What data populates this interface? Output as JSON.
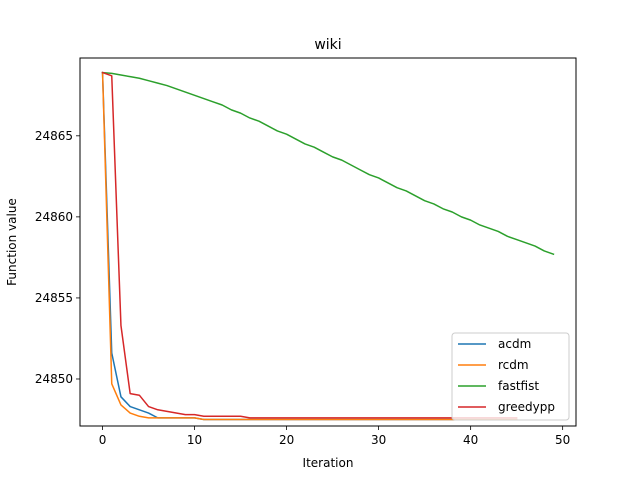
{
  "chart_data": {
    "type": "line",
    "title": "wiki",
    "xlabel": "Iteration",
    "ylabel": "Function value",
    "xlim": [
      -2.45,
      51.45
    ],
    "ylim": [
      24847.1,
      24869.8
    ],
    "xticks": [
      0,
      10,
      20,
      30,
      40,
      50
    ],
    "yticks": [
      24850,
      24855,
      24860,
      24865
    ],
    "legend_position": "lower-right",
    "grid": false,
    "series": [
      {
        "name": "acdm",
        "color": "#1f77b4",
        "x": [
          0,
          1,
          2,
          3,
          4,
          5,
          6,
          7,
          8,
          9,
          10,
          11,
          12,
          13,
          14,
          15,
          16,
          17,
          18,
          19,
          20,
          21,
          22,
          23,
          24,
          25,
          26,
          27,
          28,
          29,
          30,
          31,
          32,
          33,
          34,
          35,
          36,
          37,
          38,
          39,
          40,
          41,
          42,
          43,
          44,
          45
        ],
        "y": [
          24868.9,
          24851.6,
          24848.9,
          24848.3,
          24848.1,
          24847.9,
          24847.6,
          24847.6,
          24847.6,
          24847.6,
          24847.6,
          24847.5,
          24847.5,
          24847.5,
          24847.5,
          24847.5,
          24847.5,
          24847.5,
          24847.5,
          24847.5,
          24847.5,
          24847.5,
          24847.5,
          24847.5,
          24847.5,
          24847.5,
          24847.5,
          24847.5,
          24847.5,
          24847.5,
          24847.5,
          24847.5,
          24847.5,
          24847.5,
          24847.5,
          24847.5,
          24847.5,
          24847.5,
          24847.5,
          24847.5,
          24847.5,
          24847.5,
          24847.5,
          24847.5,
          24847.5,
          24847.5
        ]
      },
      {
        "name": "rcdm",
        "color": "#ff7f0e",
        "x": [
          0,
          1,
          2,
          3,
          4,
          5,
          6,
          7,
          8,
          9,
          10,
          11,
          12,
          13,
          14,
          15,
          16,
          17,
          18,
          19,
          20,
          21,
          22,
          23,
          24,
          25,
          26,
          27,
          28,
          29,
          30,
          31,
          32,
          33,
          34,
          35,
          36,
          37,
          38,
          39,
          40,
          41,
          42,
          43,
          44,
          45
        ],
        "y": [
          24868.9,
          24849.7,
          24848.4,
          24847.9,
          24847.7,
          24847.6,
          24847.6,
          24847.6,
          24847.6,
          24847.6,
          24847.6,
          24847.5,
          24847.5,
          24847.5,
          24847.5,
          24847.5,
          24847.5,
          24847.5,
          24847.5,
          24847.5,
          24847.5,
          24847.5,
          24847.5,
          24847.5,
          24847.5,
          24847.5,
          24847.5,
          24847.5,
          24847.5,
          24847.5,
          24847.5,
          24847.5,
          24847.5,
          24847.5,
          24847.5,
          24847.5,
          24847.5,
          24847.5,
          24847.5,
          24847.5,
          24847.5,
          24847.5,
          24847.5,
          24847.5,
          24847.5,
          24847.5
        ]
      },
      {
        "name": "fastfist",
        "color": "#2ca02c",
        "x": [
          0,
          1,
          2,
          3,
          4,
          5,
          6,
          7,
          8,
          9,
          10,
          11,
          12,
          13,
          14,
          15,
          16,
          17,
          18,
          19,
          20,
          21,
          22,
          23,
          24,
          25,
          26,
          27,
          28,
          29,
          30,
          31,
          32,
          33,
          34,
          35,
          36,
          37,
          38,
          39,
          40,
          41,
          42,
          43,
          44,
          45,
          46,
          47,
          48,
          49
        ],
        "y": [
          24868.9,
          24868.85,
          24868.75,
          24868.65,
          24868.55,
          24868.4,
          24868.25,
          24868.1,
          24867.9,
          24867.7,
          24867.5,
          24867.3,
          24867.1,
          24866.9,
          24866.6,
          24866.4,
          24866.1,
          24865.9,
          24865.6,
          24865.3,
          24865.1,
          24864.8,
          24864.5,
          24864.3,
          24864.0,
          24863.7,
          24863.5,
          24863.2,
          24862.9,
          24862.6,
          24862.4,
          24862.1,
          24861.8,
          24861.6,
          24861.3,
          24861.0,
          24860.8,
          24860.5,
          24860.3,
          24860.0,
          24859.8,
          24859.5,
          24859.3,
          24859.1,
          24858.8,
          24858.6,
          24858.4,
          24858.2,
          24857.9,
          24857.7
        ]
      },
      {
        "name": "greedypp",
        "color": "#d62728",
        "x": [
          0,
          1,
          2,
          3,
          4,
          5,
          6,
          7,
          8,
          9,
          10,
          11,
          12,
          13,
          14,
          15,
          16,
          17,
          18,
          19,
          20,
          21,
          22,
          23,
          24,
          25,
          26,
          27,
          28,
          29,
          30,
          31,
          32,
          33,
          34,
          35,
          36,
          37,
          38,
          39,
          40,
          41,
          42,
          43,
          44,
          45
        ],
        "y": [
          24868.9,
          24868.7,
          24853.3,
          24849.1,
          24849.0,
          24848.3,
          24848.1,
          24848.0,
          24847.9,
          24847.8,
          24847.8,
          24847.7,
          24847.7,
          24847.7,
          24847.7,
          24847.7,
          24847.6,
          24847.6,
          24847.6,
          24847.6,
          24847.6,
          24847.6,
          24847.6,
          24847.6,
          24847.6,
          24847.6,
          24847.6,
          24847.6,
          24847.6,
          24847.6,
          24847.6,
          24847.6,
          24847.6,
          24847.6,
          24847.6,
          24847.6,
          24847.6,
          24847.6,
          24847.6,
          24847.6,
          24847.6,
          24847.6,
          24847.6,
          24847.6,
          24847.6,
          24847.6
        ]
      }
    ]
  }
}
